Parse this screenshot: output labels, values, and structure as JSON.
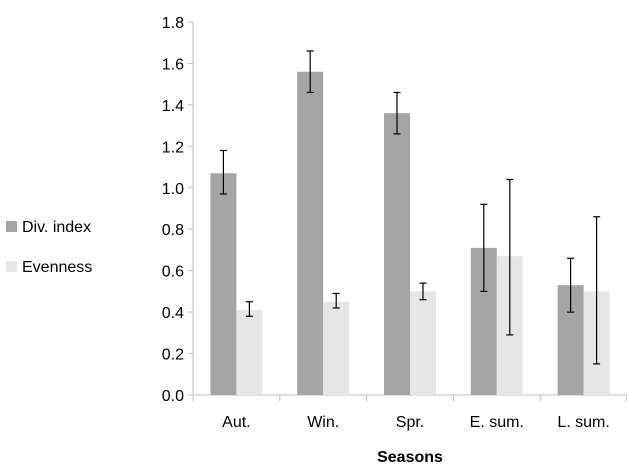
{
  "chart_data": {
    "type": "bar",
    "title": "",
    "xlabel": "Seasons",
    "ylabel": "",
    "ylim": [
      0,
      1.8
    ],
    "yticks": [
      "0.0",
      "0.2",
      "0.4",
      "0.6",
      "0.8",
      "1.0",
      "1.2",
      "1.4",
      "1.6",
      "1.8"
    ],
    "categories": [
      "Aut.",
      "Win.",
      "Spr.",
      "E. sum.",
      "L. sum."
    ],
    "series": [
      {
        "name": "Div. index",
        "color": "#a5a5a5",
        "values": [
          1.07,
          1.56,
          1.36,
          0.71,
          0.53
        ],
        "error_low": [
          0.97,
          1.46,
          1.26,
          0.5,
          0.4
        ],
        "error_high": [
          1.18,
          1.66,
          1.46,
          0.92,
          0.66
        ]
      },
      {
        "name": "Evenness",
        "color": "#e6e6e7",
        "values": [
          0.41,
          0.45,
          0.5,
          0.67,
          0.5
        ],
        "error_low": [
          0.38,
          0.42,
          0.46,
          0.29,
          0.15
        ],
        "error_high": [
          0.45,
          0.49,
          0.54,
          1.04,
          0.86
        ]
      }
    ],
    "grid": false,
    "legend_position": "left"
  }
}
